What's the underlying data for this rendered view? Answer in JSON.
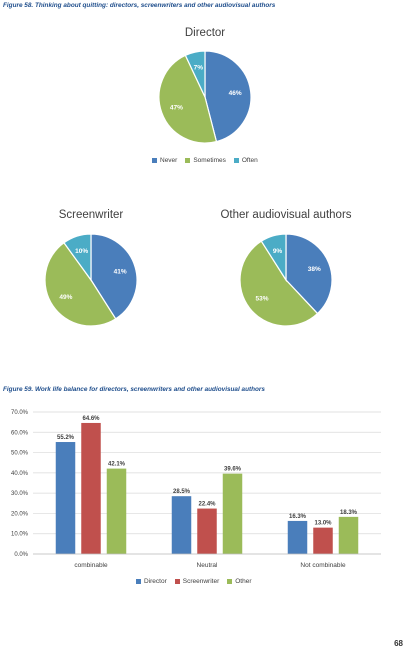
{
  "figure58": {
    "caption": "Figure 58. Thinking about quitting: directors, screenwriters and other audiovisual authors",
    "legend": [
      {
        "label": "Never",
        "color": "#4a7ebb"
      },
      {
        "label": "Sometimes",
        "color": "#9bbb59"
      },
      {
        "label": "Often",
        "color": "#4bacc6"
      }
    ]
  },
  "figure59": {
    "caption": "Figure 59. Work life balance for directors, screenwriters and other audiovisual authors",
    "legend": [
      {
        "label": "Director",
        "color": "#4a7ebb"
      },
      {
        "label": "Screenwriter",
        "color": "#c0504d"
      },
      {
        "label": "Other",
        "color": "#9bbb59"
      }
    ]
  },
  "page_number": "68",
  "chart_data": [
    {
      "type": "pie",
      "title": "Director",
      "categories": [
        "Never",
        "Sometimes",
        "Often"
      ],
      "values": [
        46,
        47,
        7
      ],
      "labels": [
        "46%",
        "47%",
        "7%"
      ],
      "colors": [
        "#4a7ebb",
        "#9bbb59",
        "#4bacc6"
      ]
    },
    {
      "type": "pie",
      "title": "Screenwriter",
      "categories": [
        "Never",
        "Sometimes",
        "Often"
      ],
      "values": [
        41,
        49,
        10
      ],
      "labels": [
        "41%",
        "49%",
        "10%"
      ],
      "colors": [
        "#4a7ebb",
        "#9bbb59",
        "#4bacc6"
      ]
    },
    {
      "type": "pie",
      "title": "Other audiovisual authors",
      "categories": [
        "Never",
        "Sometimes",
        "Often"
      ],
      "values": [
        38,
        53,
        9
      ],
      "labels": [
        "38%",
        "53%",
        "9%"
      ],
      "colors": [
        "#4a7ebb",
        "#9bbb59",
        "#4bacc6"
      ]
    },
    {
      "type": "bar",
      "categories": [
        "combinable",
        "Neutral",
        "Not combinable"
      ],
      "series": [
        {
          "name": "Director",
          "color": "#4a7ebb",
          "values": [
            55.2,
            28.5,
            16.3
          ],
          "labels": [
            "55.2%",
            "28.5%",
            "16.3%"
          ]
        },
        {
          "name": "Screenwriter",
          "color": "#c0504d",
          "values": [
            64.6,
            22.4,
            13.0
          ],
          "labels": [
            "64.6%",
            "22.4%",
            "13.0%"
          ]
        },
        {
          "name": "Other",
          "color": "#9bbb59",
          "values": [
            42.1,
            39.6,
            18.3
          ],
          "labels": [
            "42.1%",
            "39.6%",
            "18.3%"
          ]
        }
      ],
      "ylim": [
        0,
        70
      ],
      "yticks": [
        "0.0%",
        "10.0%",
        "20.0%",
        "30.0%",
        "40.0%",
        "50.0%",
        "60.0%",
        "70.0%"
      ],
      "grid": true,
      "legend_position": "bottom"
    }
  ]
}
